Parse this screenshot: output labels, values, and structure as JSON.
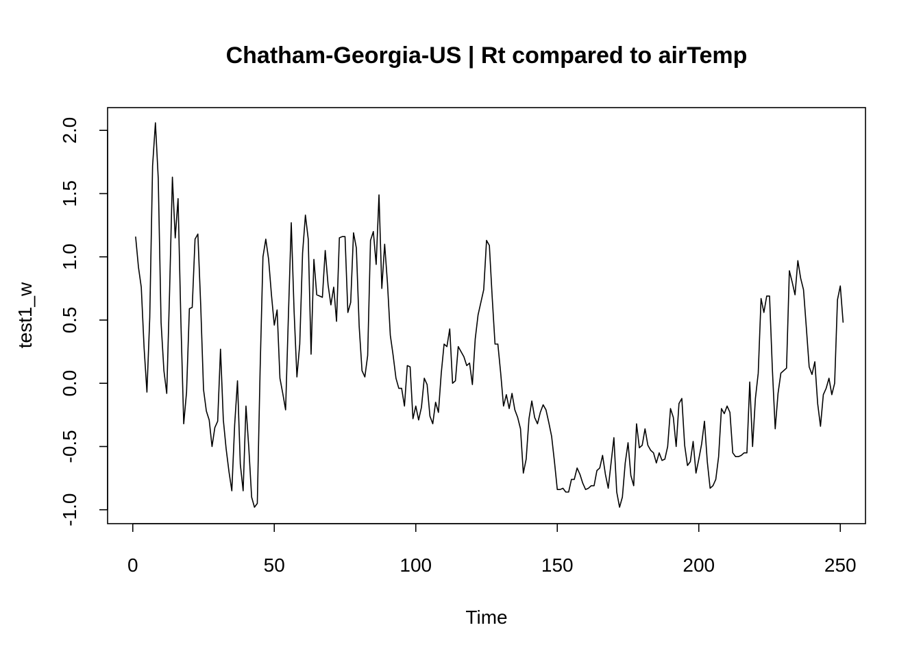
{
  "chart_data": {
    "type": "line",
    "title": "Chatham-Georgia-US | Rt compared to airTemp",
    "xlabel": "Time",
    "ylabel": "test1_w",
    "xlim": [
      -8.9,
      258.9
    ],
    "ylim": [
      -1.11,
      2.18
    ],
    "x_ticks": [
      0,
      50,
      100,
      150,
      200,
      250
    ],
    "x_tick_labels": [
      "0",
      "50",
      "100",
      "150",
      "200",
      "250"
    ],
    "y_ticks": [
      -1.0,
      -0.5,
      0.0,
      0.5,
      1.0,
      1.5,
      2.0
    ],
    "y_tick_labels": [
      "-1.0",
      "-0.5",
      "0.0",
      "0.5",
      "1.0",
      "1.5",
      "2.0"
    ],
    "grid": false,
    "legend": "none",
    "line_color": "#000000",
    "series": [
      {
        "x_start": 1,
        "values": [
          1.16,
          0.92,
          0.76,
          0.28,
          -0.07,
          0.52,
          1.72,
          2.06,
          1.62,
          0.48,
          0.1,
          -0.08,
          0.72,
          1.63,
          1.15,
          1.46,
          0.49,
          -0.32,
          -0.07,
          0.59,
          0.6,
          1.14,
          1.18,
          0.62,
          -0.05,
          -0.22,
          -0.29,
          -0.5,
          -0.35,
          -0.3,
          0.27,
          -0.29,
          -0.52,
          -0.7,
          -0.85,
          -0.33,
          0.02,
          -0.64,
          -0.85,
          -0.18,
          -0.51,
          -0.9,
          -0.98,
          -0.95,
          0.11,
          1.0,
          1.14,
          0.98,
          0.7,
          0.46,
          0.58,
          0.04,
          -0.08,
          -0.21,
          0.54,
          1.27,
          0.57,
          0.05,
          0.31,
          1.03,
          1.33,
          1.14,
          0.23,
          0.98,
          0.7,
          0.69,
          0.68,
          1.05,
          0.78,
          0.62,
          0.76,
          0.49,
          1.15,
          1.16,
          1.16,
          0.56,
          0.64,
          1.19,
          1.07,
          0.45,
          0.1,
          0.05,
          0.22,
          1.13,
          1.2,
          0.94,
          1.49,
          0.75,
          1.1,
          0.79,
          0.38,
          0.22,
          0.04,
          -0.04,
          -0.04,
          -0.18,
          0.14,
          0.13,
          -0.28,
          -0.18,
          -0.29,
          -0.19,
          0.04,
          -0.01,
          -0.26,
          -0.32,
          -0.15,
          -0.23,
          0.08,
          0.31,
          0.29,
          0.43,
          0.0,
          0.02,
          0.29,
          0.25,
          0.21,
          0.14,
          0.16,
          -0.01,
          0.35,
          0.54,
          0.64,
          0.74,
          1.13,
          1.09,
          0.68,
          0.31,
          0.31,
          0.08,
          -0.18,
          -0.09,
          -0.2,
          -0.08,
          -0.21,
          -0.27,
          -0.36,
          -0.71,
          -0.6,
          -0.28,
          -0.14,
          -0.27,
          -0.32,
          -0.23,
          -0.17,
          -0.21,
          -0.31,
          -0.42,
          -0.62,
          -0.84,
          -0.84,
          -0.83,
          -0.86,
          -0.86,
          -0.76,
          -0.76,
          -0.67,
          -0.72,
          -0.79,
          -0.84,
          -0.83,
          -0.81,
          -0.81,
          -0.69,
          -0.67,
          -0.57,
          -0.72,
          -0.83,
          -0.63,
          -0.43,
          -0.86,
          -0.98,
          -0.9,
          -0.63,
          -0.47,
          -0.73,
          -0.81,
          -0.32,
          -0.51,
          -0.49,
          -0.36,
          -0.49,
          -0.53,
          -0.55,
          -0.63,
          -0.55,
          -0.61,
          -0.6,
          -0.5,
          -0.2,
          -0.27,
          -0.5,
          -0.16,
          -0.12,
          -0.49,
          -0.65,
          -0.62,
          -0.46,
          -0.71,
          -0.6,
          -0.48,
          -0.3,
          -0.62,
          -0.83,
          -0.81,
          -0.76,
          -0.58,
          -0.2,
          -0.24,
          -0.18,
          -0.23,
          -0.55,
          -0.58,
          -0.58,
          -0.57,
          -0.55,
          -0.55,
          0.01,
          -0.5,
          -0.12,
          0.08,
          0.67,
          0.56,
          0.69,
          0.69,
          0.11,
          -0.36,
          -0.08,
          0.08,
          0.1,
          0.12,
          0.89,
          0.8,
          0.7,
          0.97,
          0.83,
          0.74,
          0.44,
          0.13,
          0.07,
          0.17,
          -0.16,
          -0.34,
          -0.09,
          -0.04,
          0.04,
          -0.09,
          0.0,
          0.66,
          0.77,
          0.48
        ]
      }
    ]
  }
}
